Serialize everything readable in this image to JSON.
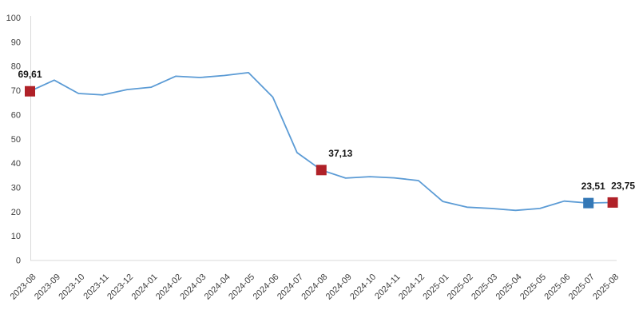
{
  "chart_data": {
    "type": "line",
    "title": "",
    "xlabel": "",
    "ylabel": "",
    "categories": [
      "2023-08",
      "2023-09",
      "2023-10",
      "2023-11",
      "2023-12",
      "2024-01",
      "2024-02",
      "2024-03",
      "2024-04",
      "2024-05",
      "2024-06",
      "2024-07",
      "2024-08",
      "2024-09",
      "2024-10",
      "2024-11",
      "2024-12",
      "2025-01",
      "2025-02",
      "2025-03",
      "2025-04",
      "2025-05",
      "2025-06",
      "2025-07",
      "2025-08"
    ],
    "values": [
      69.61,
      74.2,
      68.7,
      68.1,
      70.3,
      71.3,
      75.8,
      75.3,
      76.1,
      77.3,
      67.2,
      44.3,
      37.13,
      33.8,
      34.4,
      33.9,
      32.8,
      24.2,
      21.8,
      21.3,
      20.5,
      21.3,
      24.3,
      23.51,
      23.75
    ],
    "ylim": [
      0,
      100
    ],
    "y_tick_step": 10,
    "y_tick_labels": [
      "0",
      "10",
      "20",
      "30",
      "40",
      "50",
      "60",
      "70",
      "80",
      "90",
      "100"
    ],
    "grid": false,
    "legend": "none",
    "line_color": "#5B9BD5",
    "axis_color": "#D9D9D9",
    "tick_label_color": "#3F3F3F",
    "data_label_color": "#141414",
    "marker_colors": {
      "highlight_red": "#B02128",
      "highlight_blue": "#3478B6"
    },
    "markers": [
      {
        "category": "2023-08",
        "index": 0,
        "value": 69.61,
        "label": "69,61",
        "color": "#B02128",
        "label_dx": 0
      },
      {
        "category": "2024-08",
        "index": 12,
        "value": 37.13,
        "label": "37,13",
        "color": "#B02128",
        "label_dx": 24
      },
      {
        "category": "2025-07",
        "index": 23,
        "value": 23.51,
        "label": "23,51",
        "color": "#3478B6",
        "label_dx": 6
      },
      {
        "category": "2025-08",
        "index": 24,
        "value": 23.75,
        "label": "23,75",
        "color": "#B02128",
        "label_dx": 13
      }
    ]
  }
}
